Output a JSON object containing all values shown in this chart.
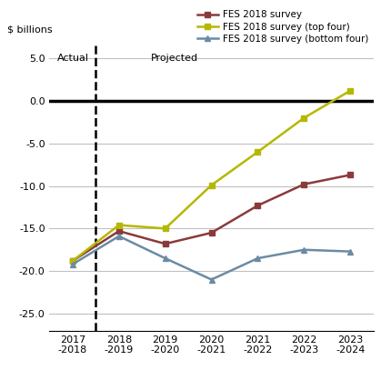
{
  "x_labels": [
    "2017\n-2018",
    "2018\n-2019",
    "2019\n-2020",
    "2020\n-2021",
    "2021\n-2022",
    "2022\n-2023",
    "2023\n-2024"
  ],
  "x_values": [
    0,
    1,
    2,
    3,
    4,
    5,
    6
  ],
  "fes_survey": [
    -18.8,
    -15.3,
    -16.8,
    -15.5,
    -12.3,
    -9.8,
    -8.7
  ],
  "fes_top_four": [
    -18.8,
    -14.6,
    -15.0,
    -9.9,
    -6.0,
    -2.0,
    1.2
  ],
  "fes_bottom_four": [
    -19.2,
    -15.9,
    -18.5,
    -21.0,
    -18.5,
    -17.5,
    -17.7
  ],
  "fes_survey_color": "#8B3A3A",
  "fes_top_four_color": "#B5B800",
  "fes_bottom_four_color": "#6B8BA4",
  "zero_line_color": "#000000",
  "grid_color": "#C0C0C0",
  "dashed_line_x": 0.5,
  "ylim": [
    -27.0,
    6.5
  ],
  "yticks": [
    5.0,
    0.0,
    -5.0,
    -10.0,
    -15.0,
    -20.0,
    -25.0
  ],
  "ylabel": "$ billions",
  "legend_labels": [
    "FES 2018 survey",
    "FES 2018 survey (top four)",
    "FES 2018 survey (bottom four)"
  ],
  "actual_label": "Actual",
  "projected_label": "Projected",
  "line_width": 1.8,
  "figsize": [
    4.19,
    4.18
  ],
  "dpi": 100
}
